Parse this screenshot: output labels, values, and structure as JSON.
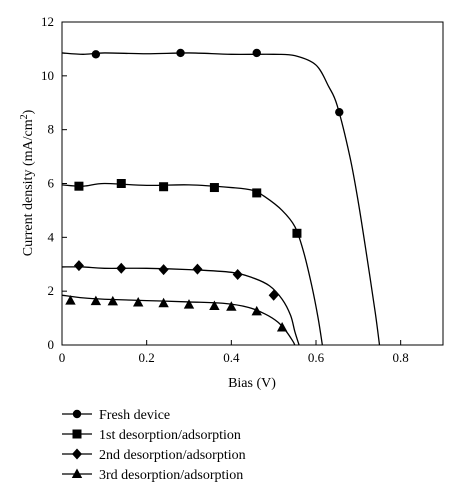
{
  "chart_data": {
    "type": "line",
    "xlabel": "Bias (V)",
    "ylabel_main": "Current density (mA/cm",
    "ylabel_sup": "2",
    "ylabel_close": ")",
    "xlim": [
      0,
      0.9
    ],
    "ylim": [
      0,
      12
    ],
    "x_ticks": [
      0,
      0.2,
      0.4,
      0.6,
      0.8
    ],
    "x_tick_labels": [
      "0",
      "0.2",
      "0.4",
      "0.6",
      "0.8"
    ],
    "y_ticks": [
      0,
      2,
      4,
      6,
      8,
      10,
      12
    ],
    "y_tick_labels": [
      "0",
      "2",
      "4",
      "6",
      "8",
      "10",
      "12"
    ],
    "grid": false,
    "legend_position": "below",
    "series": [
      {
        "name": "Fresh device",
        "marker": "circle",
        "curve": [
          [
            0,
            10.85
          ],
          [
            0.05,
            10.8
          ],
          [
            0.1,
            10.85
          ],
          [
            0.2,
            10.82
          ],
          [
            0.3,
            10.85
          ],
          [
            0.4,
            10.8
          ],
          [
            0.5,
            10.8
          ],
          [
            0.55,
            10.75
          ],
          [
            0.6,
            10.4
          ],
          [
            0.63,
            9.6
          ],
          [
            0.65,
            8.9
          ],
          [
            0.68,
            7.0
          ],
          [
            0.7,
            5.3
          ],
          [
            0.72,
            3.3
          ],
          [
            0.74,
            1.2
          ],
          [
            0.75,
            0
          ]
        ],
        "markers": [
          [
            0.08,
            10.8
          ],
          [
            0.28,
            10.85
          ],
          [
            0.46,
            10.85
          ],
          [
            0.655,
            8.65
          ]
        ]
      },
      {
        "name": "1st desorption/adsorption",
        "marker": "square",
        "curve": [
          [
            0,
            5.95
          ],
          [
            0.05,
            5.9
          ],
          [
            0.1,
            6.0
          ],
          [
            0.2,
            5.93
          ],
          [
            0.3,
            5.95
          ],
          [
            0.4,
            5.85
          ],
          [
            0.45,
            5.75
          ],
          [
            0.48,
            5.5
          ],
          [
            0.52,
            5.0
          ],
          [
            0.55,
            4.4
          ],
          [
            0.57,
            3.5
          ],
          [
            0.59,
            2.2
          ],
          [
            0.605,
            1.0
          ],
          [
            0.615,
            0
          ]
        ],
        "markers": [
          [
            0.04,
            5.9
          ],
          [
            0.14,
            6.0
          ],
          [
            0.24,
            5.88
          ],
          [
            0.36,
            5.85
          ],
          [
            0.46,
            5.65
          ],
          [
            0.555,
            4.15
          ]
        ]
      },
      {
        "name": "2nd desorption/adsorption",
        "marker": "diamond",
        "curve": [
          [
            0,
            2.9
          ],
          [
            0.05,
            2.9
          ],
          [
            0.1,
            2.85
          ],
          [
            0.2,
            2.85
          ],
          [
            0.3,
            2.8
          ],
          [
            0.4,
            2.7
          ],
          [
            0.45,
            2.5
          ],
          [
            0.49,
            2.2
          ],
          [
            0.52,
            1.7
          ],
          [
            0.54,
            1.1
          ],
          [
            0.55,
            0.5
          ],
          [
            0.56,
            0
          ]
        ],
        "markers": [
          [
            0.04,
            2.95
          ],
          [
            0.14,
            2.85
          ],
          [
            0.24,
            2.8
          ],
          [
            0.32,
            2.82
          ],
          [
            0.415,
            2.62
          ],
          [
            0.5,
            1.85
          ]
        ]
      },
      {
        "name": "3rd desorption/adsorption",
        "marker": "triangle",
        "curve": [
          [
            0,
            1.85
          ],
          [
            0.05,
            1.75
          ],
          [
            0.1,
            1.7
          ],
          [
            0.2,
            1.65
          ],
          [
            0.3,
            1.6
          ],
          [
            0.38,
            1.55
          ],
          [
            0.44,
            1.4
          ],
          [
            0.48,
            1.15
          ],
          [
            0.51,
            0.85
          ],
          [
            0.53,
            0.5
          ],
          [
            0.545,
            0.15
          ],
          [
            0.55,
            0
          ]
        ],
        "markers": [
          [
            0.02,
            1.65
          ],
          [
            0.08,
            1.63
          ],
          [
            0.12,
            1.62
          ],
          [
            0.18,
            1.58
          ],
          [
            0.24,
            1.55
          ],
          [
            0.3,
            1.5
          ],
          [
            0.36,
            1.45
          ],
          [
            0.4,
            1.42
          ],
          [
            0.46,
            1.25
          ],
          [
            0.52,
            0.65
          ]
        ]
      }
    ]
  }
}
